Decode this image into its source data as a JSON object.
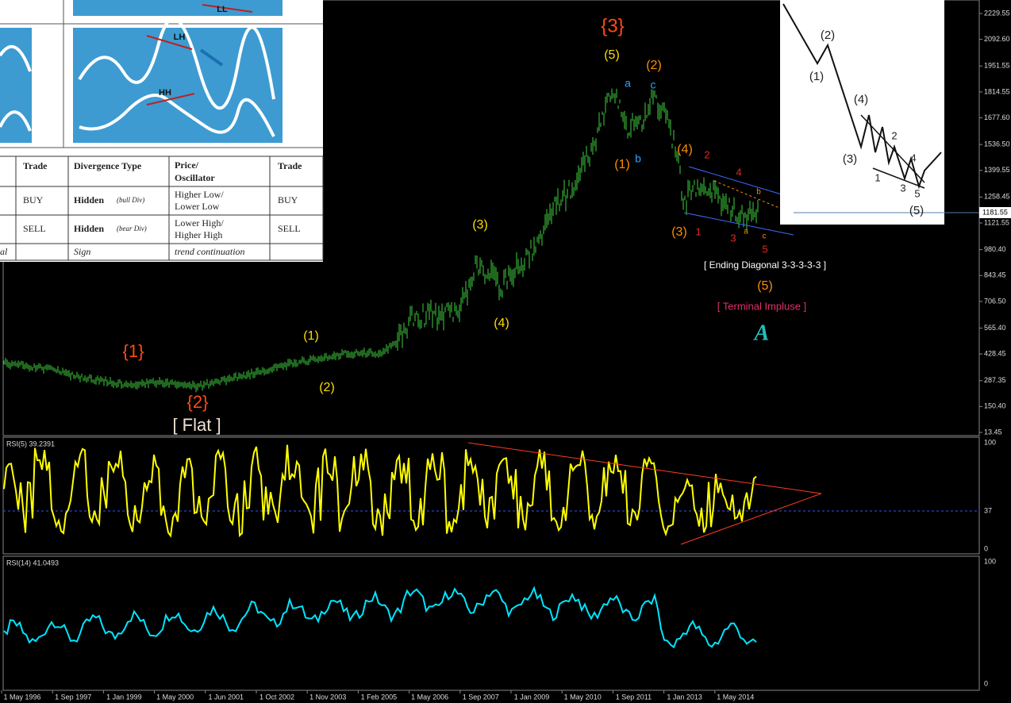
{
  "price_axis_ticks": [
    "2229.55",
    "2092.60",
    "1951.55",
    "1814.55",
    "1677.60",
    "1536.50",
    "1399.55",
    "1258.45",
    "1121.55",
    "980.40",
    "843.45",
    "706.50",
    "565.40",
    "428.45",
    "287.35",
    "150.40",
    "13.45"
  ],
  "current_price": "1181.55",
  "date_labels": [
    "1 May 1996",
    "1 Sep 1997",
    "1 Jan 1999",
    "1 May 2000",
    "1 Jun 2001",
    "1 Oct 2002",
    "1 Nov 2003",
    "1 Feb 2005",
    "1 May 2006",
    "1 Sep 2007",
    "1 Jan 2009",
    "1 May 2010",
    "1 Sep 2011",
    "1 Jan 2013",
    "1 May 2014"
  ],
  "rsi5": {
    "label": "RSI(5) 39.2391",
    "ticks": [
      "100",
      "37",
      "0"
    ]
  },
  "rsi14": {
    "label": "RSI(14) 41.0493",
    "ticks": [
      "100",
      "0"
    ]
  },
  "wave_labels": [
    "{3}",
    "(5)",
    "(2)",
    "a",
    "c",
    "(1)",
    "b",
    "(4)",
    "2",
    "4",
    "b",
    "(3)",
    "1",
    "3",
    "a",
    "c",
    "5",
    "[ Ending Diagonal 3-3-3-3-3 ]",
    "(5)",
    "[ Terminal Impluse ]",
    "A",
    "(3)",
    "(4)",
    "(1)",
    "(2)",
    "{1}",
    "{2}",
    "[ Flat ]"
  ],
  "thumbnail_labels": [
    "LL",
    "LH",
    "HH"
  ],
  "table": {
    "header": [
      "Trade",
      "Divergence Type",
      "Price/",
      "Oscillator",
      "Trade"
    ],
    "rows": [
      [
        "BUY",
        "Hidden",
        "(bull Div)",
        "Higher Low/",
        "Lower Low",
        "BUY"
      ],
      [
        "SELL",
        "Hidden",
        "(bear Div)",
        "Lower High/",
        "Higher High",
        "SELL"
      ]
    ],
    "footer": [
      "al",
      "Sign",
      "trend continuation"
    ]
  },
  "inset_labels": [
    "(2)",
    "(1)",
    "(4)",
    "(3)",
    "2",
    "1",
    "4",
    "3",
    "5",
    "(5)"
  ]
}
